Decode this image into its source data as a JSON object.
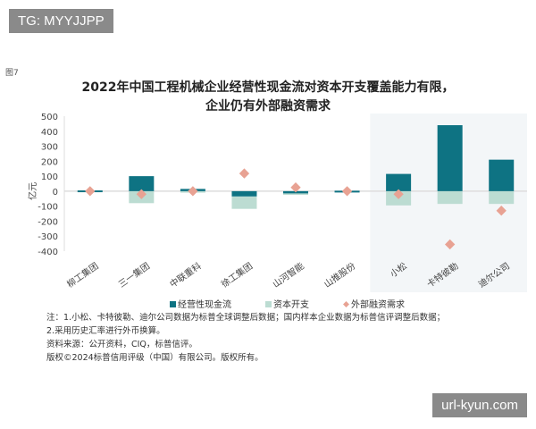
{
  "watermarks": [
    "TG: MYYJJPP",
    "url-kyun.com"
  ],
  "figure_label": "图7",
  "chart_data": {
    "type": "bar",
    "title": [
      "2022年中国工程机械企业经营性现金流对资本开支覆盖能力有限，",
      "企业仍有外部融资需求"
    ],
    "ylabel": "亿元",
    "ylim": [
      -400,
      500
    ],
    "yticks": [
      500,
      400,
      300,
      200,
      100,
      0,
      -100,
      -200,
      -300,
      -400
    ],
    "categories": [
      "柳工集团",
      "三一集团",
      "中联重科",
      "徐工集团",
      "山河智能",
      "山推股份",
      "小松",
      "卡特彼勒",
      "迪尔公司"
    ],
    "highlighted_categories": [
      "小松",
      "卡特彼勒",
      "迪尔公司"
    ],
    "series": [
      {
        "name": "经营性现金流",
        "type": "stacked-bar",
        "color": "#0e7383",
        "values": [
          5,
          100,
          15,
          -35,
          -15,
          3,
          115,
          440,
          210
        ]
      },
      {
        "name": "资本开支",
        "type": "stacked-bar",
        "color": "#bcdcd2",
        "values": [
          -5,
          -80,
          -10,
          -83,
          -10,
          -3,
          -95,
          -85,
          -85
        ]
      },
      {
        "name": "外部融资需求",
        "type": "scatter-diamond",
        "color": "#e8a293",
        "values": [
          0,
          -20,
          0,
          118,
          25,
          0,
          -20,
          -355,
          -130
        ]
      }
    ],
    "legend": "bottom"
  },
  "notes": [
    "注：1.小松、卡特彼勒、迪尔公司数据为标普全球调整后数据；国内样本企业数据为标普信评调整后数据；",
    "2.采用历史汇率进行外币换算。",
    "资料来源：公开资料，CIQ，标普信评。",
    "版权©2024标普信用评级（中国）有限公司。版权所有。"
  ]
}
